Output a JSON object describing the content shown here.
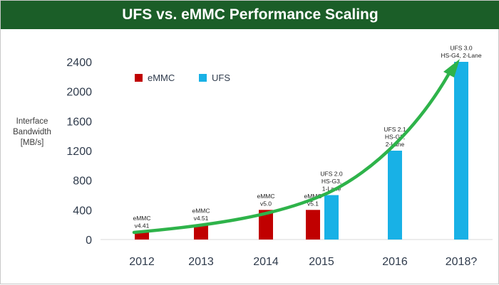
{
  "chart_data": {
    "type": "bar",
    "title": "UFS vs. eMMC Performance Scaling",
    "ylabel": [
      "Interface",
      "Bandwidth",
      "[MB/s]"
    ],
    "xlabel": "",
    "ylim": [
      0,
      2400
    ],
    "yticks": [
      "0",
      "400",
      "800",
      "1200",
      "1600",
      "2000",
      "2400"
    ],
    "ytick_values": [
      0,
      400,
      800,
      1200,
      1600,
      2000,
      2400
    ],
    "categories": [
      "2012",
      "2013",
      "2014",
      "2015",
      "2016",
      "2018?"
    ],
    "series": [
      {
        "name": "eMMC",
        "color": "#c00000",
        "values": [
          100,
          200,
          400,
          400,
          null,
          null
        ]
      },
      {
        "name": "UFS",
        "color": "#18b1e6",
        "values": [
          null,
          null,
          null,
          600,
          1200,
          2400
        ]
      }
    ],
    "annotations": [
      {
        "category": "2012",
        "series": "eMMC",
        "lines": [
          "eMMC",
          "v4.41"
        ]
      },
      {
        "category": "2013",
        "series": "eMMC",
        "lines": [
          "eMMC",
          "v4.51"
        ]
      },
      {
        "category": "2014",
        "series": "eMMC",
        "lines": [
          "eMMC",
          "v5.0"
        ]
      },
      {
        "category": "2015",
        "series": "eMMC",
        "lines": [
          "eMMC",
          "v5.1"
        ]
      },
      {
        "category": "2015",
        "series": "UFS",
        "lines": [
          "UFS 2.0",
          "HS-G3,",
          "1-Lane"
        ]
      },
      {
        "category": "2016",
        "series": "UFS",
        "lines": [
          "UFS 2.1",
          "HS-G3,",
          "2-Lane"
        ]
      },
      {
        "category": "2018?",
        "series": "UFS",
        "lines": [
          "UFS 3.0",
          "HS-G4, 2-Lane"
        ]
      }
    ],
    "trend_arrow_color": "#2eb34a",
    "grid": false,
    "legend_position": "top-left"
  }
}
